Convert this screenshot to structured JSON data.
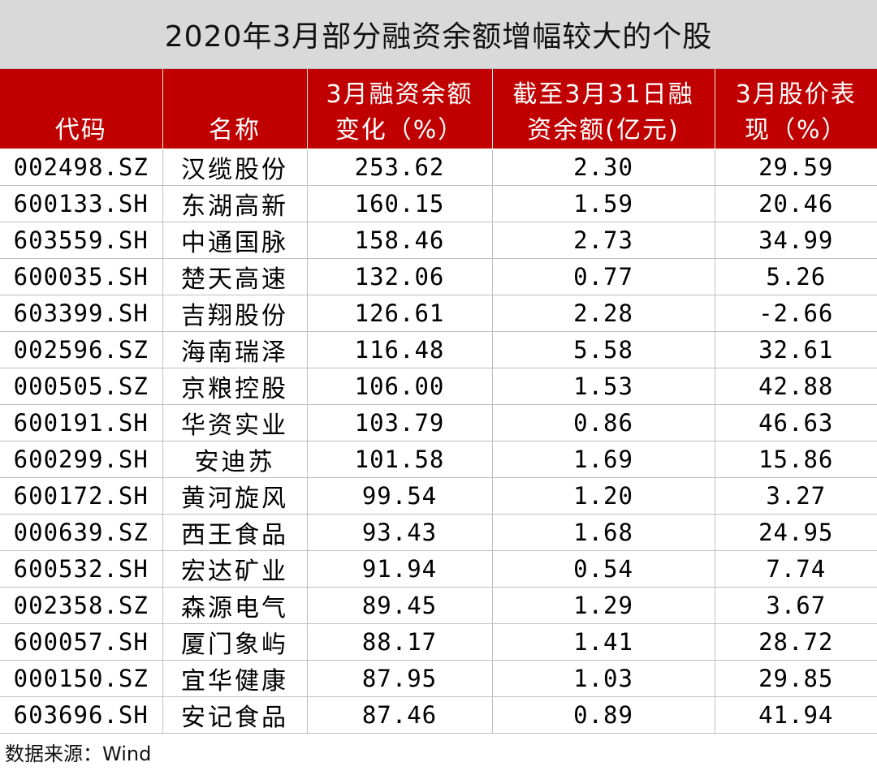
{
  "title": "2020年3月部分融资余额增幅较大的个股",
  "headers": [
    {
      "line1": "",
      "line2": "代码"
    },
    {
      "line1": "",
      "line2": "名称"
    },
    {
      "line1": "3月融资余额",
      "line2": "变化（%）"
    },
    {
      "line1": "截至3月31日融",
      "line2": "资余额(亿元)"
    },
    {
      "line1": "3月股价表",
      "line2": "现（%）"
    }
  ],
  "rows": [
    {
      "code": "002498.SZ",
      "name": "汉缆股份",
      "change": "253.62",
      "balance": "2.30",
      "price": "29.59"
    },
    {
      "code": "600133.SH",
      "name": "东湖高新",
      "change": "160.15",
      "balance": "1.59",
      "price": "20.46"
    },
    {
      "code": "603559.SH",
      "name": "中通国脉",
      "change": "158.46",
      "balance": "2.73",
      "price": "34.99"
    },
    {
      "code": "600035.SH",
      "name": "楚天高速",
      "change": "132.06",
      "balance": "0.77",
      "price": "5.26"
    },
    {
      "code": "603399.SH",
      "name": "吉翔股份",
      "change": "126.61",
      "balance": "2.28",
      "price": "-2.66"
    },
    {
      "code": "002596.SZ",
      "name": "海南瑞泽",
      "change": "116.48",
      "balance": "5.58",
      "price": "32.61"
    },
    {
      "code": "000505.SZ",
      "name": "京粮控股",
      "change": "106.00",
      "balance": "1.53",
      "price": "42.88"
    },
    {
      "code": "600191.SH",
      "name": "华资实业",
      "change": "103.79",
      "balance": "0.86",
      "price": "46.63"
    },
    {
      "code": "600299.SH",
      "name": "安迪苏",
      "change": "101.58",
      "balance": "1.69",
      "price": "15.86"
    },
    {
      "code": "600172.SH",
      "name": "黄河旋风",
      "change": "99.54",
      "balance": "1.20",
      "price": "3.27"
    },
    {
      "code": "000639.SZ",
      "name": "西王食品",
      "change": "93.43",
      "balance": "1.68",
      "price": "24.95"
    },
    {
      "code": "600532.SH",
      "name": "宏达矿业",
      "change": "91.94",
      "balance": "0.54",
      "price": "7.74"
    },
    {
      "code": "002358.SZ",
      "name": "森源电气",
      "change": "89.45",
      "balance": "1.29",
      "price": "3.67"
    },
    {
      "code": "600057.SH",
      "name": "厦门象屿",
      "change": "88.17",
      "balance": "1.41",
      "price": "28.72"
    },
    {
      "code": "000150.SZ",
      "name": "宜华健康",
      "change": "87.95",
      "balance": "1.03",
      "price": "29.85"
    },
    {
      "code": "603696.SH",
      "name": "安记食品",
      "change": "87.46",
      "balance": "0.89",
      "price": "41.94"
    }
  ],
  "source": "数据来源：Wind",
  "colors": {
    "header_bg": "#c00000",
    "title_bg": "#d9d9d9",
    "header_text": "#ffffff",
    "grid": "#bfbfbf"
  }
}
